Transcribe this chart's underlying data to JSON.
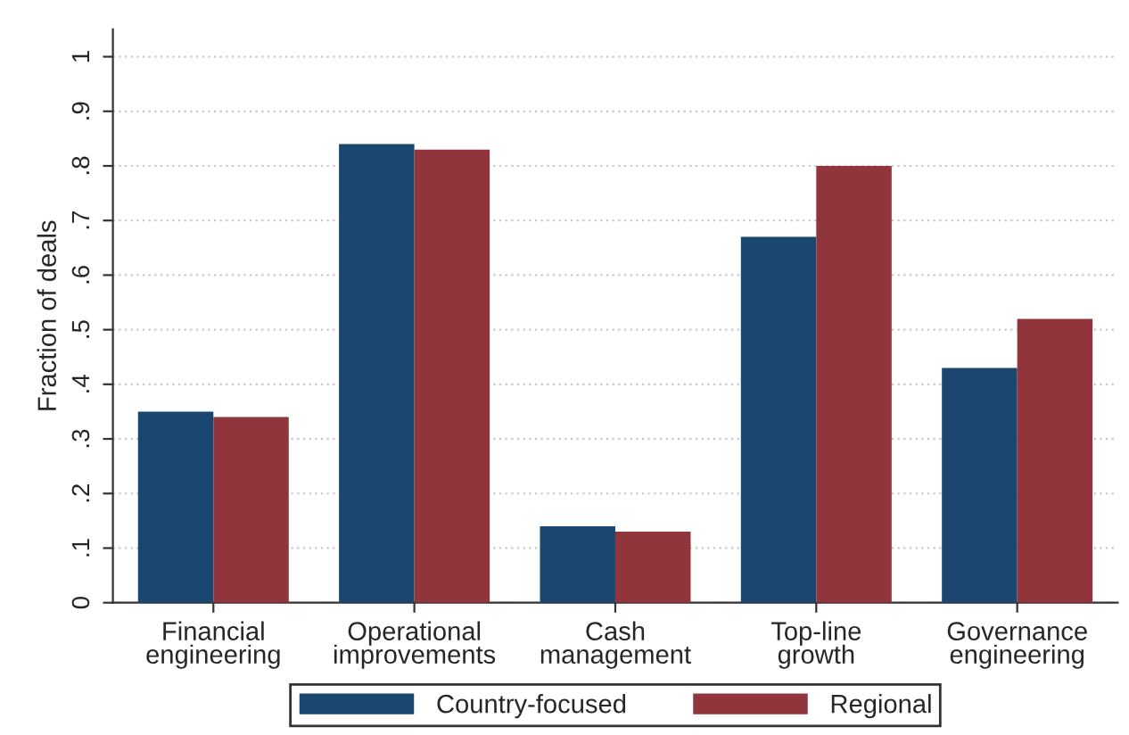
{
  "chart_data": {
    "type": "bar",
    "ylabel": "Fraction of deals",
    "categories": [
      "Financial\nengineering",
      "Operational\nimprovements",
      "Cash\nmanagement",
      "Top-line\ngrowth",
      "Governance\nengineering"
    ],
    "series": [
      {
        "name": "Country-focused",
        "color": "#1a476f",
        "values": [
          0.35,
          0.84,
          0.14,
          0.67,
          0.43
        ]
      },
      {
        "name": "Regional",
        "color": "#90353b",
        "values": [
          0.34,
          0.83,
          0.13,
          0.8,
          0.52
        ]
      }
    ],
    "ylim": [
      0,
      1.05
    ],
    "yticks": [
      {
        "value": 0,
        "label": "0"
      },
      {
        "value": 0.1,
        "label": ".1"
      },
      {
        "value": 0.2,
        "label": ".2"
      },
      {
        "value": 0.3,
        "label": ".3"
      },
      {
        "value": 0.4,
        "label": ".4"
      },
      {
        "value": 0.5,
        "label": ".5"
      },
      {
        "value": 0.6,
        "label": ".6"
      },
      {
        "value": 0.7,
        "label": ".7"
      },
      {
        "value": 0.8,
        "label": ".8"
      },
      {
        "value": 0.9,
        "label": ".9"
      },
      {
        "value": 1,
        "label": "1"
      }
    ],
    "grid": "y",
    "legend": "bottom"
  }
}
